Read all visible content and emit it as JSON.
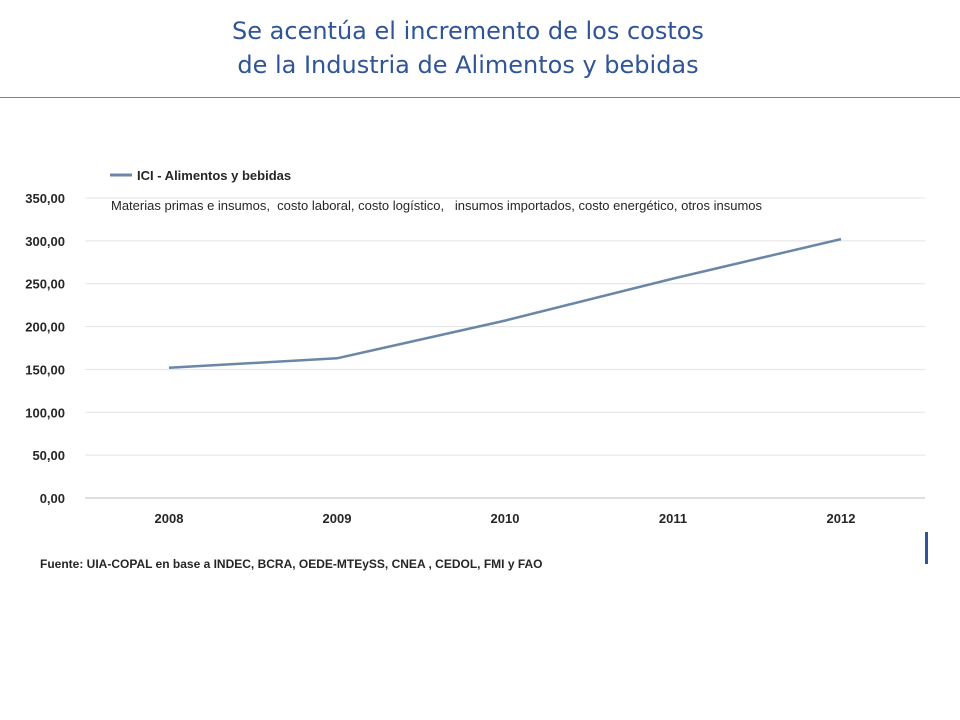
{
  "slide": {
    "title_line1": "Se acentúa el incremento de los costos",
    "title_line2": "de la Industria de Alimentos y bebidas",
    "source": "Fuente: UIA-COPAL en base  a  INDEC, BCRA, OEDE-MTEySS, CNEA , CEDOL, FMI y FAO"
  },
  "chart_data": {
    "type": "line",
    "title": "",
    "xlabel": "",
    "ylabel": "",
    "annotation": "Materias primas e insumos,  costo laboral, costo logístico,   insumos importados, costo energético, otros insumos",
    "categories": [
      "2008",
      "2009",
      "2010",
      "2011",
      "2012"
    ],
    "series": [
      {
        "name": "ICI - Alimentos y bebidas",
        "values": [
          152,
          163,
          207,
          256,
          302
        ],
        "color": "#6b87a8"
      }
    ],
    "y_ticks": [
      "0,00",
      "50,00",
      "100,00",
      "150,00",
      "200,00",
      "250,00",
      "300,00",
      "350,00"
    ],
    "ylim": [
      0,
      350
    ],
    "grid": true,
    "legend_position": "top-left"
  },
  "colors": {
    "title": "#2f5597",
    "series_line": "#6b87a8",
    "axis_text": "#262626"
  }
}
